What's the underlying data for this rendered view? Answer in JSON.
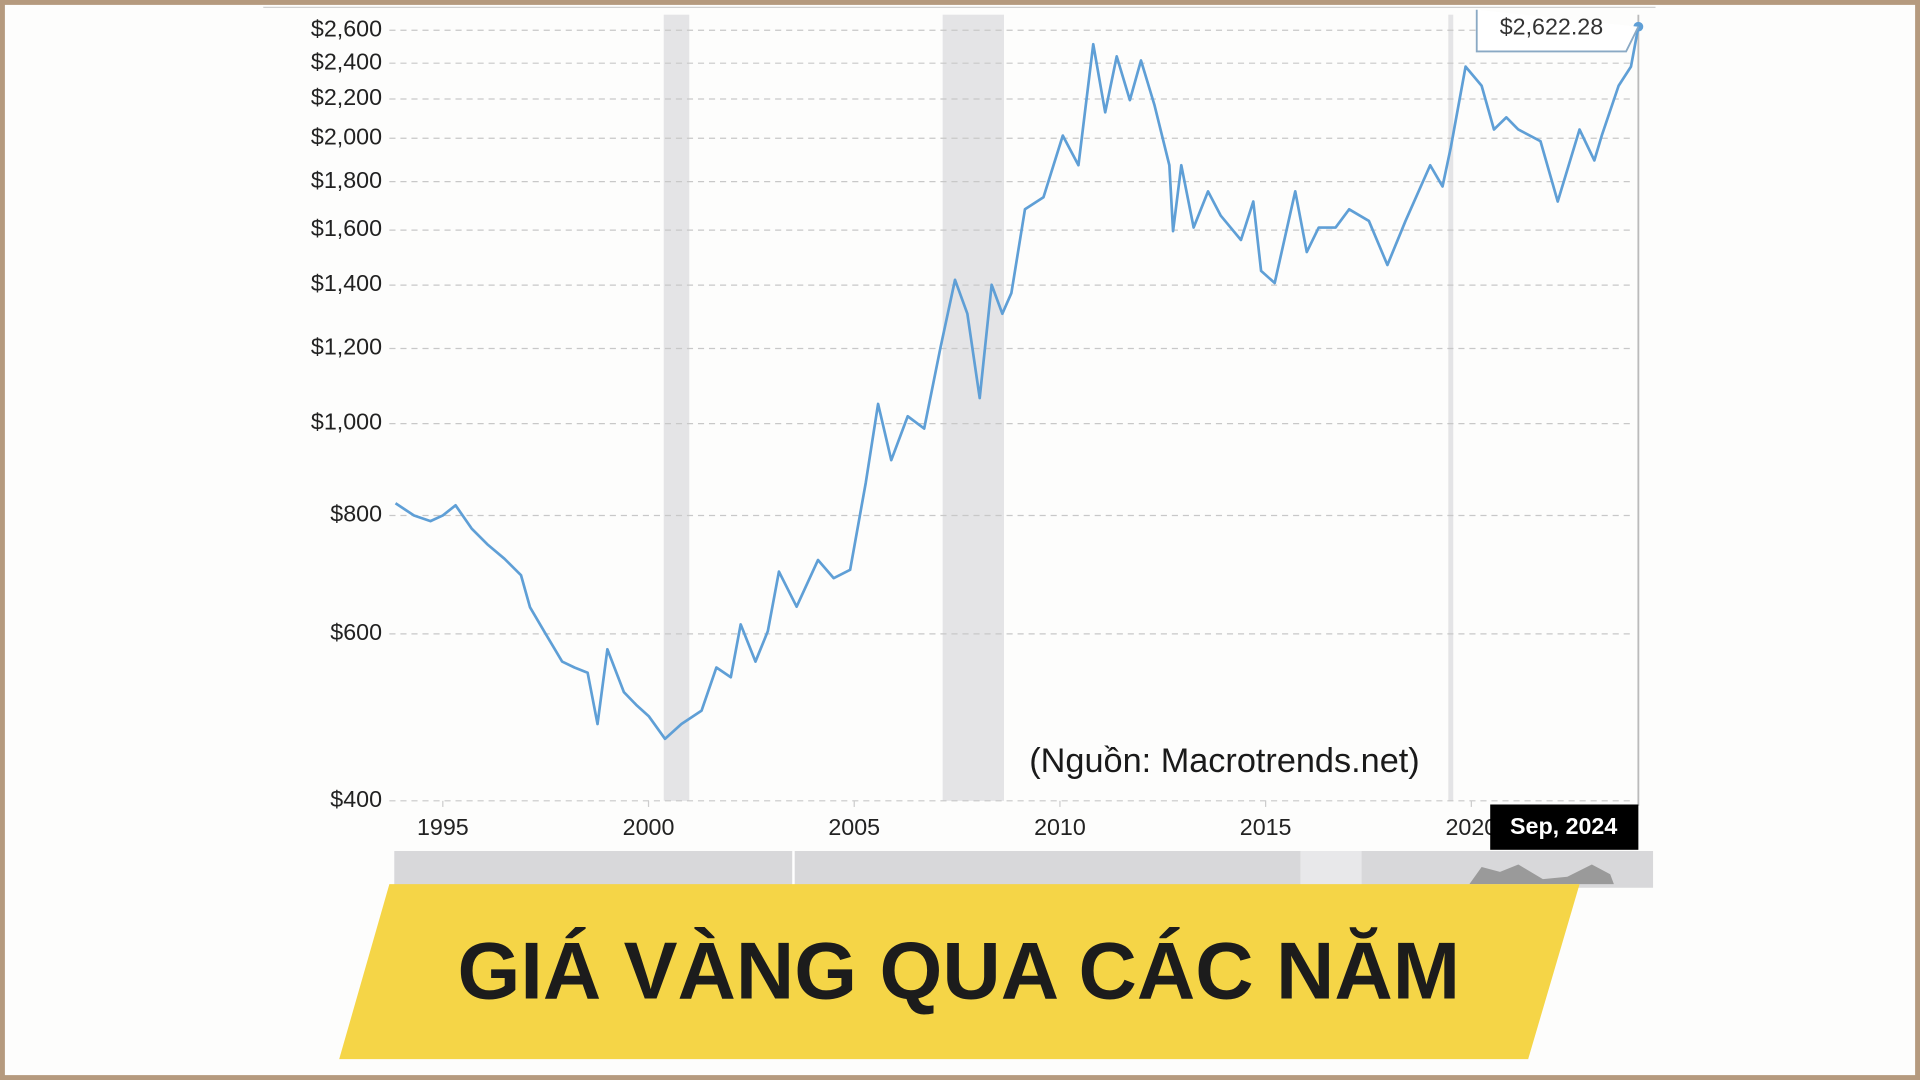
{
  "chart_data": {
    "type": "line",
    "log_y": true,
    "grid": true,
    "xlim": [
      1993.85,
      2024.06
    ],
    "xticks": [
      1995,
      2000,
      2005,
      2010,
      2015,
      2020
    ],
    "ylim": [
      400,
      2700
    ],
    "yticks": [
      {
        "value": 400,
        "label": "$400"
      },
      {
        "value": 600,
        "label": "$600"
      },
      {
        "value": 800,
        "label": "$800"
      },
      {
        "value": 1000,
        "label": "$1,000"
      },
      {
        "value": 1200,
        "label": "$1,200"
      },
      {
        "value": 1400,
        "label": "$1,400"
      },
      {
        "value": 1600,
        "label": "$1,600"
      },
      {
        "value": 1800,
        "label": "$1,800"
      },
      {
        "value": 2000,
        "label": "$2,000"
      },
      {
        "value": 2200,
        "label": "$2,200"
      },
      {
        "value": 2400,
        "label": "$2,400"
      },
      {
        "value": 2600,
        "label": "$2,600"
      }
    ],
    "shaded_ranges": [
      [
        2000.37,
        2000.99
      ],
      [
        2007.15,
        2008.64
      ],
      [
        2019.44,
        2019.56
      ]
    ],
    "series": [
      {
        "color": "#5f9fd6",
        "x": [
          1993.85,
          1994.3,
          1994.7,
          1995.0,
          1995.31,
          1995.7,
          1996.08,
          1996.5,
          1996.9,
          1997.12,
          1997.5,
          1997.9,
          1998.2,
          1998.52,
          1998.76,
          1999.0,
          1999.4,
          1999.7,
          2000.01,
          2000.4,
          2000.8,
          2001.29,
          2001.65,
          2002.0,
          2002.24,
          2002.6,
          2002.9,
          2003.17,
          2003.6,
          2004.12,
          2004.5,
          2004.9,
          2005.28,
          2005.58,
          2005.9,
          2006.3,
          2006.7,
          2007.09,
          2007.45,
          2007.75,
          2008.05,
          2008.34,
          2008.6,
          2008.82,
          2009.15,
          2009.6,
          2010.07,
          2010.45,
          2010.81,
          2011.1,
          2011.38,
          2011.7,
          2011.97,
          2012.3,
          2012.66,
          2012.75,
          2012.95,
          2013.25,
          2013.6,
          2013.91,
          2014.4,
          2014.7,
          2014.89,
          2015.22,
          2015.72,
          2016.0,
          2016.29,
          2016.7,
          2017.03,
          2017.51,
          2017.96,
          2018.4,
          2019.0,
          2019.3,
          2019.5,
          2019.86,
          2020.25,
          2020.55,
          2020.85,
          2021.14,
          2021.68,
          2022.1,
          2022.63,
          2022.99,
          2023.17,
          2023.58,
          2023.88,
          2024.06
        ],
        "values": [
          824,
          800,
          789,
          800,
          820,
          775,
          746,
          720,
          692,
          640,
          600,
          561,
          553,
          546,
          482,
          578,
          521,
          505,
          491,
          465,
          482,
          498,
          553,
          540,
          614,
          561,
          604,
          698,
          641,
          718,
          687,
          701,
          866,
          1049,
          915,
          1018,
          988,
          1199,
          1418,
          1306,
          1064,
          1401,
          1306,
          1373,
          1683,
          1733,
          2013,
          1873,
          2513,
          2130,
          2440,
          2194,
          2416,
          2166,
          1873,
          1596,
          1873,
          1610,
          1758,
          1657,
          1562,
          1715,
          1449,
          1407,
          1758,
          1517,
          1610,
          1610,
          1683,
          1636,
          1470,
          1636,
          1873,
          1779,
          1955,
          2380,
          2272,
          2043,
          2104,
          2043,
          1986,
          1715,
          2043,
          1895,
          2013,
          2272,
          2380,
          2622.28
        ]
      }
    ],
    "annotations": {
      "last_value": "$2,622.28",
      "last_date": "Sep, 2024",
      "source": "(Nguồn: Macrotrends.net)"
    }
  },
  "banner": "GIÁ VÀNG QUA CÁC NĂM"
}
